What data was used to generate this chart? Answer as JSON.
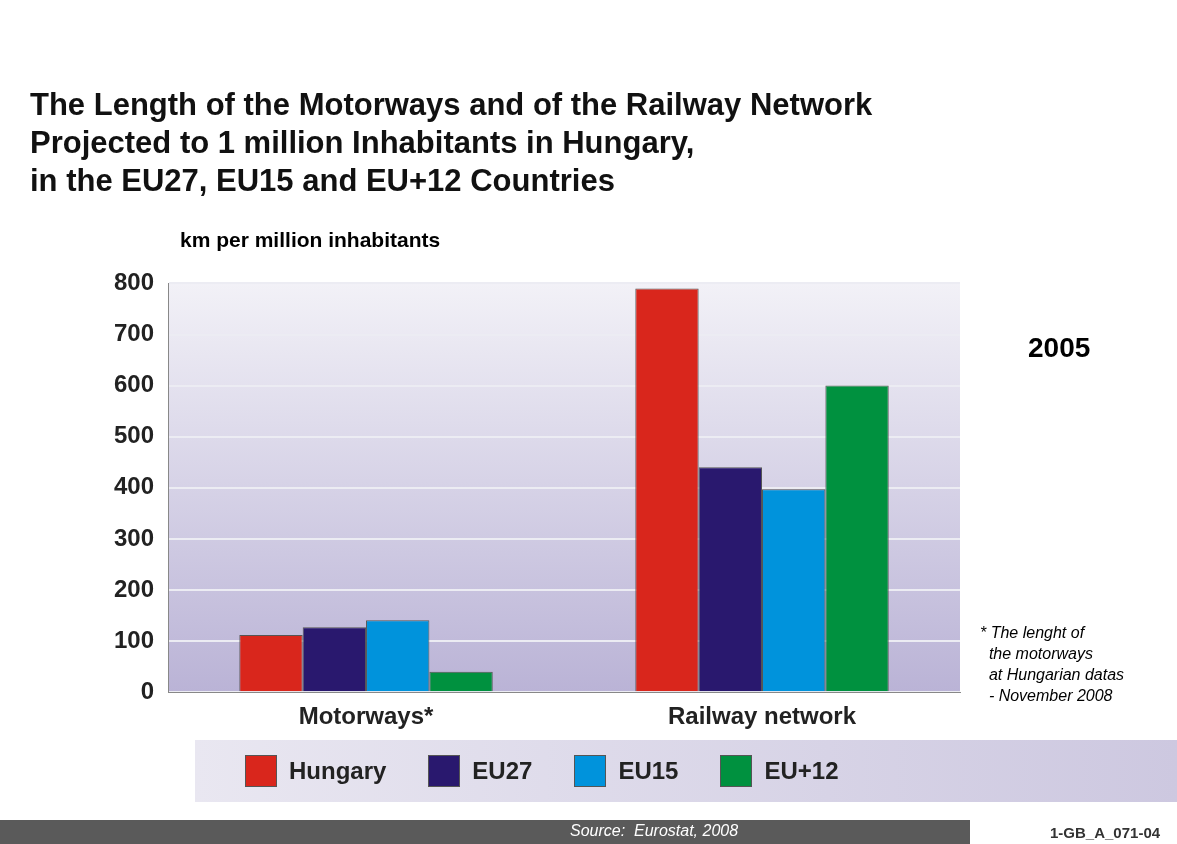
{
  "chart_data": {
    "type": "bar",
    "title": "The Length of the Motorways and of the Railway Network\nProjected to 1 million Inhabitants in Hungary,\nin the EU27, EU15 and EU+12 Countries",
    "ylabel": "km per million inhabitants",
    "categories": [
      "Motorways*",
      "Railway network"
    ],
    "series": [
      {
        "name": "Hungary",
        "color": "#d9261c",
        "values": [
          112,
          790
        ]
      },
      {
        "name": "EU27",
        "color": "#29186e",
        "values": [
          127,
          440
        ]
      },
      {
        "name": "EU15",
        "color": "#0093dc",
        "values": [
          141,
          397
        ]
      },
      {
        "name": "EU+12",
        "color": "#00913f",
        "values": [
          40,
          600
        ]
      }
    ],
    "ylim": [
      0,
      800
    ],
    "yticks": [
      0,
      100,
      200,
      300,
      400,
      500,
      600,
      700,
      800
    ],
    "grid": "y",
    "legend": "bottom",
    "annotations": [
      "2005",
      "* The lenght of\n  the motorways\n  at Hungarian datas\n  - November 2008",
      "Source:  Eurostat, 2008",
      "1-GB_A_071-04"
    ]
  }
}
